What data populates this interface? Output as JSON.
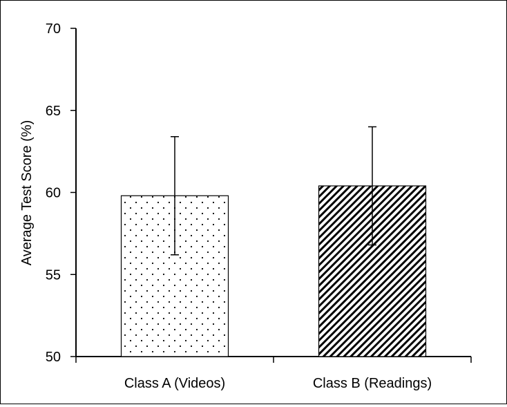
{
  "chart_data": {
    "type": "bar",
    "title": "",
    "xlabel": "",
    "ylabel": "Average Test Score (%)",
    "ylim": [
      50,
      70
    ],
    "yticks": [
      50,
      55,
      60,
      65,
      70
    ],
    "grid": false,
    "legend": "none",
    "categories": [
      "Class A (Videos)",
      "Class B (Readings)"
    ],
    "values": [
      59.8,
      60.4
    ],
    "error": [
      3.6,
      3.6
    ],
    "fill_patterns": [
      "dots",
      "diagonal-hatch"
    ],
    "colors": {
      "bar_edge": "#000000",
      "pattern": "#000000",
      "background": "#ffffff"
    }
  }
}
